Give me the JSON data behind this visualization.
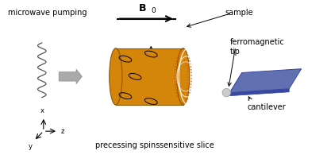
{
  "bg_color": "#ffffff",
  "labels": {
    "microwave_pumping": "microwave pumping",
    "sample": "sample",
    "ferromagnetic_tip": "ferromagnetic\ntip",
    "cantilever": "cantilever",
    "precessing_spins": "precessing spins",
    "sensitive_slice": "sensitive slice",
    "x_axis": "x",
    "y_axis": "y",
    "z_axis": "z"
  },
  "colors": {
    "cylinder_face": "#D4860A",
    "cylinder_edge": "#8B5500",
    "sensitive_slice_red": "#E05000",
    "white_arc": "#FFFFFF",
    "cantilever_top": "#6070B0",
    "cantilever_dark": "#3848A0",
    "cantilever_side": "#8090C0",
    "microwave_color": "#555555",
    "tip_color": "#CCCCCC",
    "gray_arrow": "#AAAAAA"
  },
  "figsize": [
    4.17,
    2.09
  ],
  "dpi": 100
}
